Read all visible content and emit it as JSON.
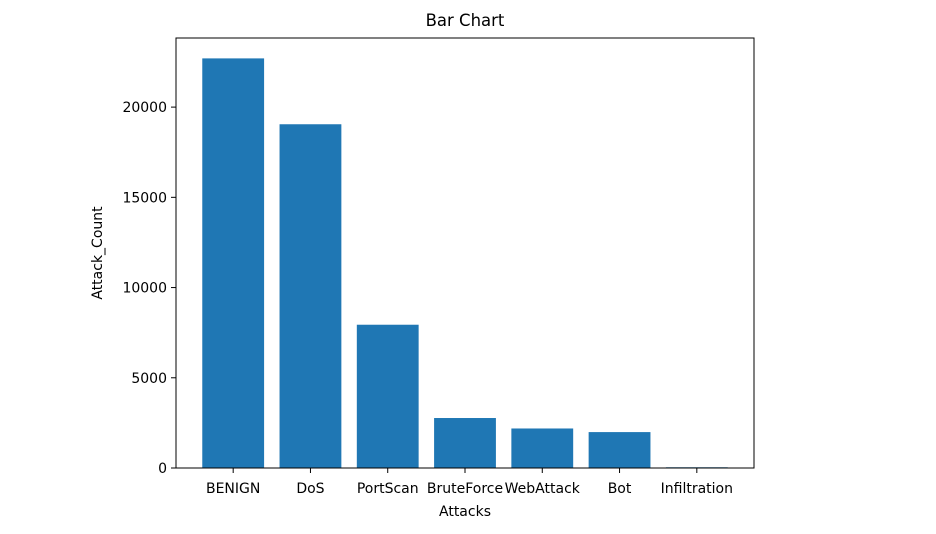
{
  "chart_data": {
    "type": "bar",
    "title": "Bar Chart",
    "xlabel": "Attacks",
    "ylabel": "Attack_Count",
    "categories": [
      "BENIGN",
      "DoS",
      "PortScan",
      "BruteForce",
      "WebAttack",
      "Bot",
      "Infiltration"
    ],
    "values": [
      22700,
      19050,
      7940,
      2770,
      2190,
      1990,
      40
    ],
    "ylim": [
      0,
      23830
    ],
    "yticks": [
      0,
      5000,
      10000,
      15000,
      20000
    ],
    "grid": false,
    "legend": "none",
    "bar_color": "#1f77b4"
  }
}
